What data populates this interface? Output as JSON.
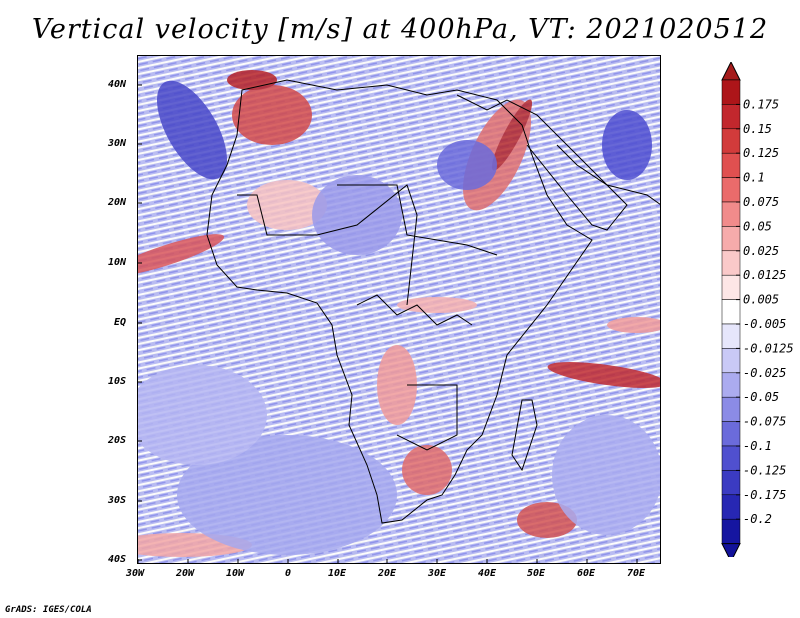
{
  "title": "Vertical velocity [m/s] at 400hPa, VT: 2021020512",
  "credit": "GrADS: IGES/COLA",
  "axes": {
    "lat_ticks": [
      "40N",
      "30N",
      "20N",
      "10N",
      "EQ",
      "10S",
      "20S",
      "30S",
      "40S"
    ],
    "lon_ticks": [
      "30W",
      "20W",
      "10W",
      "0",
      "10E",
      "20E",
      "30E",
      "40E",
      "50E",
      "60E",
      "70E"
    ]
  },
  "colorbar": {
    "labels": [
      "0.175",
      "0.15",
      "0.125",
      "0.1",
      "0.075",
      "0.05",
      "0.025",
      "0.0125",
      "0.005",
      "-0.005",
      "-0.0125",
      "-0.025",
      "-0.05",
      "-0.075",
      "-0.1",
      "-0.125",
      "-0.175",
      "-0.2"
    ],
    "colors": [
      "#ad1519",
      "#c2272d",
      "#d23b3b",
      "#e05050",
      "#ea6b6b",
      "#f18b8b",
      "#f6abab",
      "#fac9c9",
      "#fde6e6",
      "#ffffff",
      "#e6e6fb",
      "#c9c9f6",
      "#ababef",
      "#8b8be6",
      "#6b6bdb",
      "#5050cf",
      "#3b3bc2",
      "#2727b3",
      "#1515a0"
    ],
    "over_color": "#a51c1c",
    "under_color": "#12129a"
  }
}
